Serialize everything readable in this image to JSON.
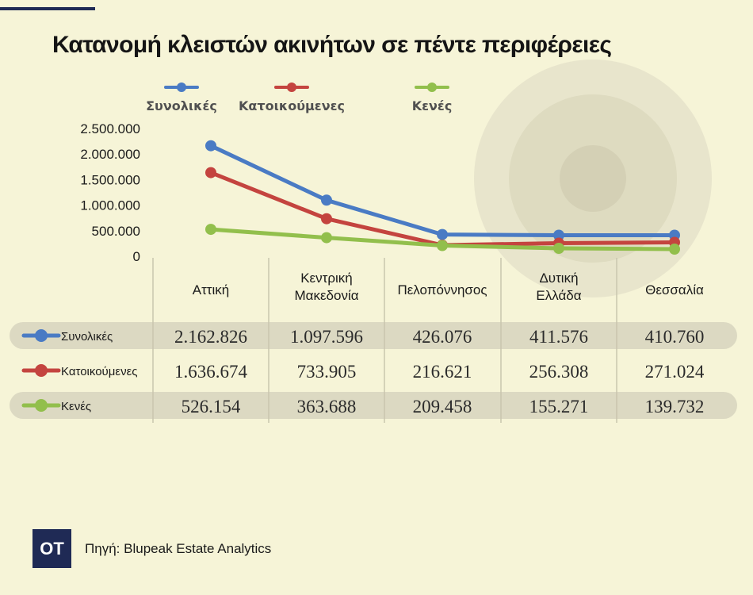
{
  "title": "Κατανομή κλειστών ακινήτων σε πέντε περιφέρειες",
  "source": "Πηγή: Blupeak Estate Analytics",
  "logo_text": "ΟΤ",
  "chart_data": {
    "type": "line",
    "title": "Κατανομή κλειστών ακινήτων σε πέντε περιφέρειες",
    "categories": [
      [
        "Αττική"
      ],
      [
        "Κεντρική",
        "Μακεδονία"
      ],
      [
        "Πελοπόννησος"
      ],
      [
        "Δυτική",
        "Ελλάδα"
      ],
      [
        "Θεσσαλία"
      ]
    ],
    "ylim": [
      0,
      2500000
    ],
    "yticks": [
      0,
      500000,
      1000000,
      1500000,
      2000000,
      2500000
    ],
    "ytick_labels": [
      "0",
      "500.000",
      "1.000.000",
      "1.500.000",
      "2.000.000",
      "2.500.000"
    ],
    "legend_position": "top",
    "series": [
      {
        "name": "Συνολικές",
        "color": "#4a7bc4",
        "values": [
          2162826,
          1097596,
          426076,
          411576,
          410760
        ],
        "labels": [
          "2.162.826",
          "1.097.596",
          "426.076",
          "411.576",
          "410.760"
        ]
      },
      {
        "name": "Κατοικούμενες",
        "color": "#c4443f",
        "values": [
          1636674,
          733905,
          216621,
          256308,
          271024
        ],
        "labels": [
          "1.636.674",
          "733.905",
          "216.621",
          "256.308",
          "271.024"
        ]
      },
      {
        "name": "Κενές",
        "color": "#92bf4c",
        "values": [
          526154,
          363688,
          209458,
          155271,
          139732
        ],
        "labels": [
          "526.154",
          "363.688",
          "209.458",
          "155.271",
          "139.732"
        ]
      }
    ]
  }
}
